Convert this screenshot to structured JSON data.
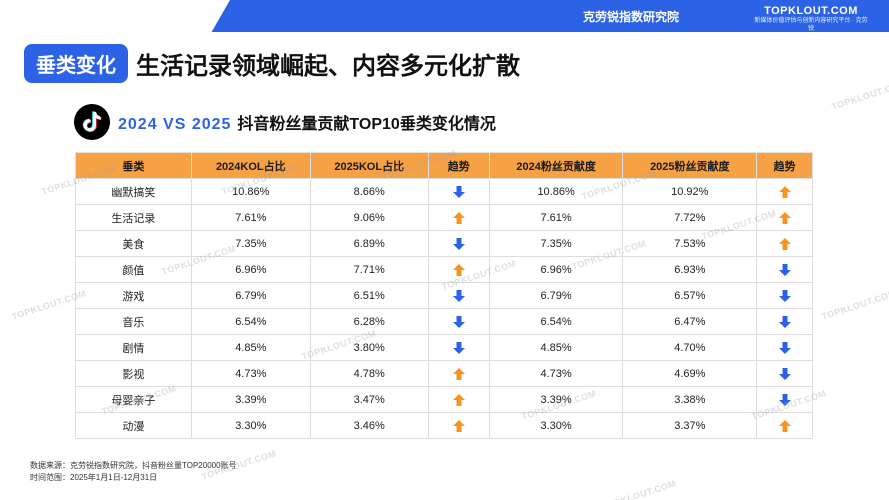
{
  "header": {
    "org": "克劳锐指数研究院",
    "brand_name": "TOPKLOUT.COM",
    "brand_tag": "新媒体价值评估与创新内容研究平台 · 克劳锐"
  },
  "title": {
    "badge": "垂类变化",
    "main": "生活记录领域崛起、内容多元化扩散"
  },
  "subtitle": {
    "vs": "2024 VS 2025",
    "text": "抖音粉丝量贡献TOP10垂类变化情况"
  },
  "colors": {
    "accent": "#2c63e6",
    "header_orange": "#f7a145",
    "up_arrow": "#f7941d",
    "down_arrow": "#2c63e6"
  },
  "table": {
    "columns": [
      "垂类",
      "2024KOL占比",
      "2025KOL占比",
      "趋势",
      "2024粉丝贡献度",
      "2025粉丝贡献度",
      "趋势"
    ],
    "rows": [
      {
        "category": "幽默搞笑",
        "kol2024": "10.86%",
        "kol2025": "8.66%",
        "kol_trend": "down",
        "fans2024": "10.86%",
        "fans2025": "10.92%",
        "fans_trend": "up"
      },
      {
        "category": "生活记录",
        "kol2024": "7.61%",
        "kol2025": "9.06%",
        "kol_trend": "up",
        "fans2024": "7.61%",
        "fans2025": "7.72%",
        "fans_trend": "up"
      },
      {
        "category": "美食",
        "kol2024": "7.35%",
        "kol2025": "6.89%",
        "kol_trend": "down",
        "fans2024": "7.35%",
        "fans2025": "7.53%",
        "fans_trend": "up"
      },
      {
        "category": "颜值",
        "kol2024": "6.96%",
        "kol2025": "7.71%",
        "kol_trend": "up",
        "fans2024": "6.96%",
        "fans2025": "6.93%",
        "fans_trend": "down"
      },
      {
        "category": "游戏",
        "kol2024": "6.79%",
        "kol2025": "6.51%",
        "kol_trend": "down",
        "fans2024": "6.79%",
        "fans2025": "6.57%",
        "fans_trend": "down"
      },
      {
        "category": "音乐",
        "kol2024": "6.54%",
        "kol2025": "6.28%",
        "kol_trend": "down",
        "fans2024": "6.54%",
        "fans2025": "6.47%",
        "fans_trend": "down"
      },
      {
        "category": "剧情",
        "kol2024": "4.85%",
        "kol2025": "3.80%",
        "kol_trend": "down",
        "fans2024": "4.85%",
        "fans2025": "4.70%",
        "fans_trend": "down"
      },
      {
        "category": "影视",
        "kol2024": "4.73%",
        "kol2025": "4.78%",
        "kol_trend": "up",
        "fans2024": "4.73%",
        "fans2025": "4.69%",
        "fans_trend": "down"
      },
      {
        "category": "母婴亲子",
        "kol2024": "3.39%",
        "kol2025": "3.47%",
        "kol_trend": "up",
        "fans2024": "3.39%",
        "fans2025": "3.38%",
        "fans_trend": "down"
      },
      {
        "category": "动漫",
        "kol2024": "3.30%",
        "kol2025": "3.46%",
        "kol_trend": "up",
        "fans2024": "3.30%",
        "fans2025": "3.37%",
        "fans_trend": "up"
      }
    ]
  },
  "footer": {
    "source": "数据来源：克劳锐指数研究院，抖音粉丝量TOP20000账号",
    "period": "时间范围：2025年1月1日-12月31日"
  },
  "watermark": "TOPKLOUT.COM"
}
